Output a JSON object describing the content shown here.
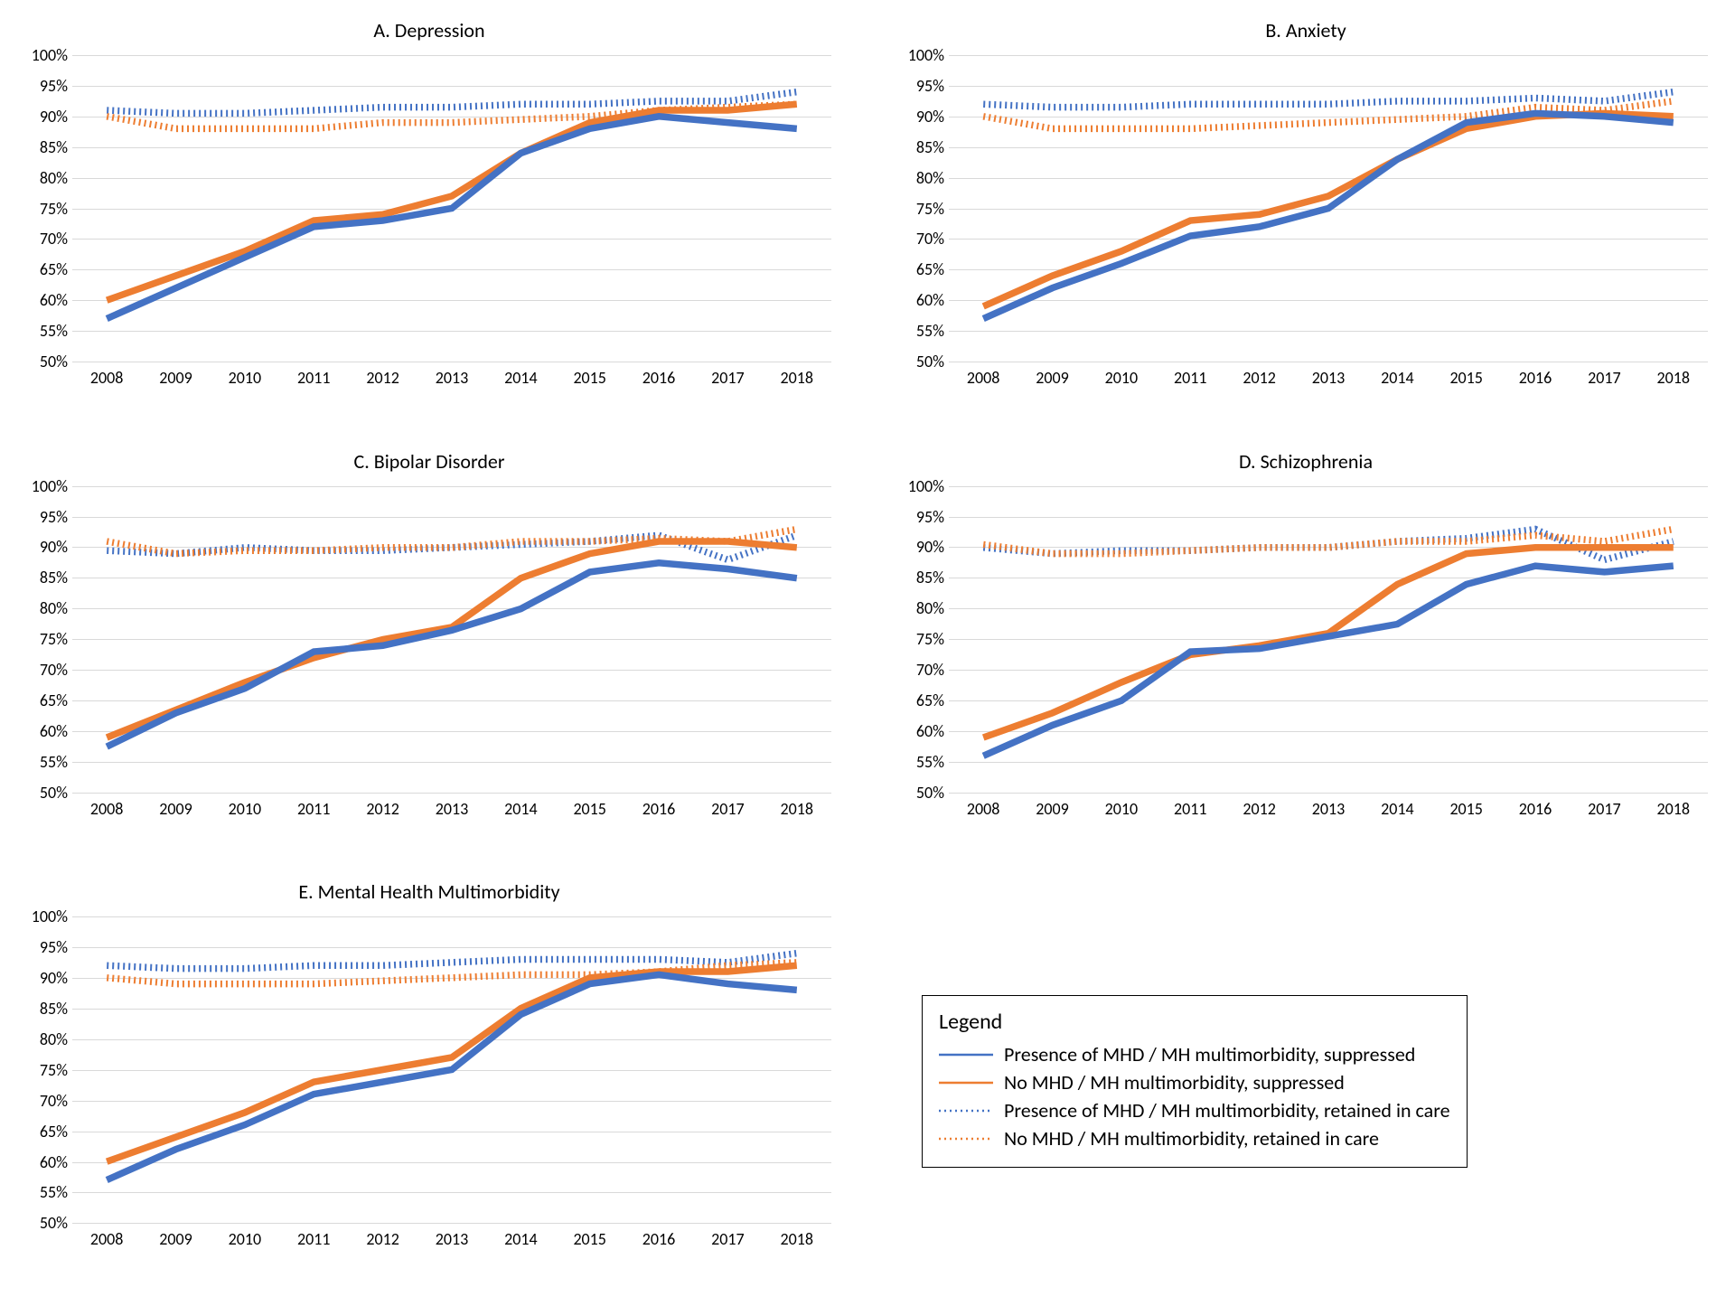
{
  "layout": {
    "background_color": "#ffffff",
    "grid_color": "#d9d9d9",
    "axis_color": "#bfbfbf",
    "text_color": "#000000",
    "title_fontsize": 22,
    "tick_fontsize": 18,
    "legend_fontsize": 22,
    "line_width": 2.5,
    "dotted_dash": "2 4"
  },
  "years": [
    "2008",
    "2009",
    "2010",
    "2011",
    "2012",
    "2013",
    "2014",
    "2015",
    "2016",
    "2017",
    "2018"
  ],
  "ylim": [
    50,
    100
  ],
  "ytick_step": 5,
  "series_style": {
    "presence_suppressed": {
      "color": "#4472c4",
      "dash": "solid"
    },
    "no_suppressed": {
      "color": "#ed7d31",
      "dash": "solid"
    },
    "presence_retained": {
      "color": "#4472c4",
      "dash": "dotted"
    },
    "no_retained": {
      "color": "#ed7d31",
      "dash": "dotted"
    }
  },
  "panels": [
    {
      "key": "depression",
      "title": "A. Depression",
      "data": {
        "presence_suppressed": [
          57,
          62,
          67,
          72,
          73,
          75,
          84,
          88,
          90,
          89,
          88
        ],
        "no_suppressed": [
          60,
          64,
          68,
          73,
          74,
          77,
          84,
          89,
          91,
          91,
          92
        ],
        "presence_retained": [
          91,
          90.5,
          90.5,
          91,
          91.5,
          91.5,
          92,
          92,
          92.5,
          92.5,
          94
        ],
        "no_retained": [
          90,
          88,
          88,
          88,
          89,
          89,
          89.5,
          90,
          91,
          91.5,
          92
        ]
      }
    },
    {
      "key": "anxiety",
      "title": "B. Anxiety",
      "data": {
        "presence_suppressed": [
          57,
          62,
          66,
          70.5,
          72,
          75,
          83,
          89,
          90.5,
          90,
          89
        ],
        "no_suppressed": [
          59,
          64,
          68,
          73,
          74,
          77,
          83,
          88,
          90,
          90.5,
          90
        ],
        "presence_retained": [
          92,
          91.5,
          91.5,
          92,
          92,
          92,
          92.5,
          92.5,
          93,
          92.5,
          94
        ],
        "no_retained": [
          90,
          88,
          88,
          88,
          88.5,
          89,
          89.5,
          90,
          91.5,
          91,
          92.5
        ]
      }
    },
    {
      "key": "bipolar",
      "title": "C. Bipolar Disorder",
      "data": {
        "presence_suppressed": [
          57.5,
          63,
          67,
          73,
          74,
          76.5,
          80,
          86,
          87.5,
          86.5,
          85
        ],
        "no_suppressed": [
          59,
          63.5,
          68,
          72,
          75,
          77,
          85,
          89,
          91,
          91,
          90
        ],
        "presence_retained": [
          89.5,
          89,
          90,
          89.5,
          89.5,
          90,
          90.5,
          91,
          92,
          88,
          92
        ],
        "no_retained": [
          91,
          89,
          89.5,
          89.5,
          90,
          90,
          91,
          91,
          91.5,
          91,
          93
        ]
      }
    },
    {
      "key": "schizophrenia",
      "title": "D. Schizophrenia",
      "data": {
        "presence_suppressed": [
          56,
          61,
          65,
          73,
          73.5,
          75.5,
          77.5,
          84,
          87,
          86,
          87
        ],
        "no_suppressed": [
          59,
          63,
          68,
          72.5,
          74,
          76,
          84,
          89,
          90,
          90,
          90
        ],
        "presence_retained": [
          90,
          89,
          89.5,
          89.5,
          90,
          90,
          91,
          91.5,
          93,
          88,
          91
        ],
        "no_retained": [
          90.5,
          89,
          89,
          89.5,
          90,
          90,
          91,
          91,
          92,
          91,
          93
        ]
      }
    },
    {
      "key": "multimorbidity",
      "title": "E. Mental Health Multimorbidity",
      "data": {
        "presence_suppressed": [
          57,
          62,
          66,
          71,
          73,
          75,
          84,
          89,
          90.5,
          89,
          88
        ],
        "no_suppressed": [
          60,
          64,
          68,
          73,
          75,
          77,
          85,
          90,
          91,
          91,
          92
        ],
        "presence_retained": [
          92,
          91.5,
          91.5,
          92,
          92,
          92.5,
          93,
          93,
          93,
          92.5,
          94
        ],
        "no_retained": [
          90,
          89,
          89,
          89,
          89.5,
          90,
          90.5,
          90.5,
          91,
          92,
          92.5
        ]
      }
    }
  ],
  "legend": {
    "title": "Legend",
    "items": [
      {
        "style": "presence_suppressed",
        "label": "Presence of MHD / MH multimorbidity, suppressed"
      },
      {
        "style": "no_suppressed",
        "label": "No MHD / MH multimorbidity, suppressed"
      },
      {
        "style": "presence_retained",
        "label": "Presence of MHD / MH multimorbidity, retained in care"
      },
      {
        "style": "no_retained",
        "label": "No MHD / MH multimorbidity, retained in care"
      }
    ]
  }
}
